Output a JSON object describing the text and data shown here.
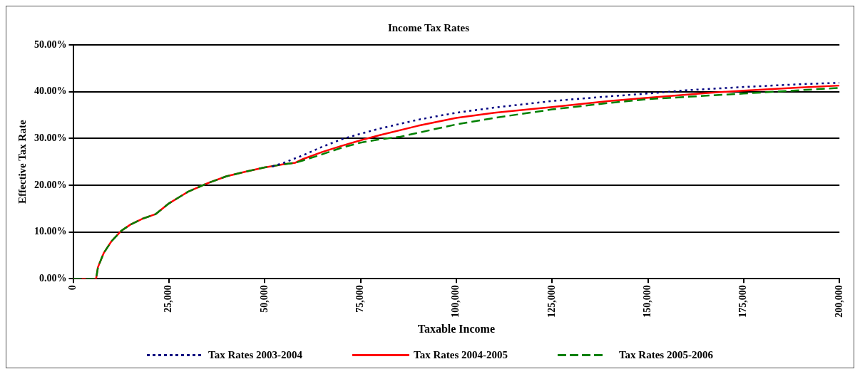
{
  "chart_data": {
    "type": "line",
    "title": "Income Tax Rates",
    "xlabel": "Taxable Income",
    "ylabel": "Effective Tax Rate",
    "xlim": [
      0,
      200000
    ],
    "xticks": [
      {
        "value": 0,
        "label": "0"
      },
      {
        "value": 25000,
        "label": "25,000"
      },
      {
        "value": 50000,
        "label": "50,000"
      },
      {
        "value": 75000,
        "label": "75,000"
      },
      {
        "value": 100000,
        "label": "100,000"
      },
      {
        "value": 125000,
        "label": "125,000"
      },
      {
        "value": 150000,
        "label": "150,000"
      },
      {
        "value": 175000,
        "label": "175,000"
      },
      {
        "value": 200000,
        "label": "200,000"
      }
    ],
    "ylim": [
      0,
      50
    ],
    "yticks": [
      {
        "value": 0,
        "label": "0.00%"
      },
      {
        "value": 10,
        "label": "10.00%"
      },
      {
        "value": 20,
        "label": "20.00%"
      },
      {
        "value": 30,
        "label": "30.00%"
      },
      {
        "value": 40,
        "label": "40.00%"
      },
      {
        "value": 50,
        "label": "50.00%"
      }
    ],
    "grid": "y",
    "legend": "bottom",
    "marker": "none",
    "series": [
      {
        "name": "Tax Rates 2003-2004",
        "color": "#000080",
        "line_style": "dotted",
        "x": [
          52000,
          55000,
          60000,
          65000,
          70000,
          75000,
          80000,
          90000,
          100000,
          110000,
          125000,
          140000,
          150000,
          160000,
          175000,
          190000,
          200000
        ],
        "values": [
          24.0,
          24.8,
          26.4,
          28.2,
          29.8,
          31.0,
          32.1,
          34.0,
          35.5,
          36.6,
          38.0,
          39.0,
          39.6,
          40.3,
          41.0,
          41.6,
          41.9
        ]
      },
      {
        "name": "Tax Rates 2004-2005",
        "color": "#ff0000",
        "line_style": "solid",
        "x": [
          0,
          6000,
          6500,
          8000,
          10000,
          12500,
          15000,
          18000,
          21500,
          25000,
          30000,
          35000,
          40000,
          45000,
          50000,
          55000,
          58000,
          60000,
          65000,
          70000,
          75000,
          80000,
          90000,
          100000,
          110000,
          125000,
          140000,
          150000,
          165000,
          175000,
          190000,
          200000
        ],
        "values": [
          0,
          0,
          2.5,
          5.5,
          8.0,
          10.2,
          11.6,
          12.8,
          13.8,
          16.1,
          18.6,
          20.4,
          21.9,
          22.9,
          23.8,
          24.5,
          24.8,
          25.6,
          27.1,
          28.4,
          29.6,
          30.7,
          32.7,
          34.4,
          35.5,
          36.7,
          38.0,
          38.7,
          39.7,
          40.2,
          40.9,
          41.3
        ]
      },
      {
        "name": "Tax Rates 2005-2006",
        "color": "#008000",
        "line_style": "dashed",
        "x": [
          0,
          6000,
          6500,
          8000,
          10000,
          12500,
          15000,
          18000,
          21500,
          25000,
          30000,
          35000,
          40000,
          45000,
          50000,
          55000,
          58000,
          60000,
          65000,
          70000,
          75000,
          80000,
          85000,
          90000,
          100000,
          110000,
          125000,
          140000,
          150000,
          175000,
          200000
        ],
        "values": [
          0,
          0,
          2.5,
          5.5,
          8.0,
          10.2,
          11.6,
          12.8,
          13.8,
          16.1,
          18.6,
          20.4,
          21.9,
          22.9,
          23.8,
          24.5,
          24.8,
          25.3,
          26.6,
          28.0,
          29.1,
          29.8,
          30.3,
          31.2,
          33.0,
          34.4,
          36.2,
          37.6,
          38.4,
          39.6,
          40.8
        ]
      }
    ]
  }
}
